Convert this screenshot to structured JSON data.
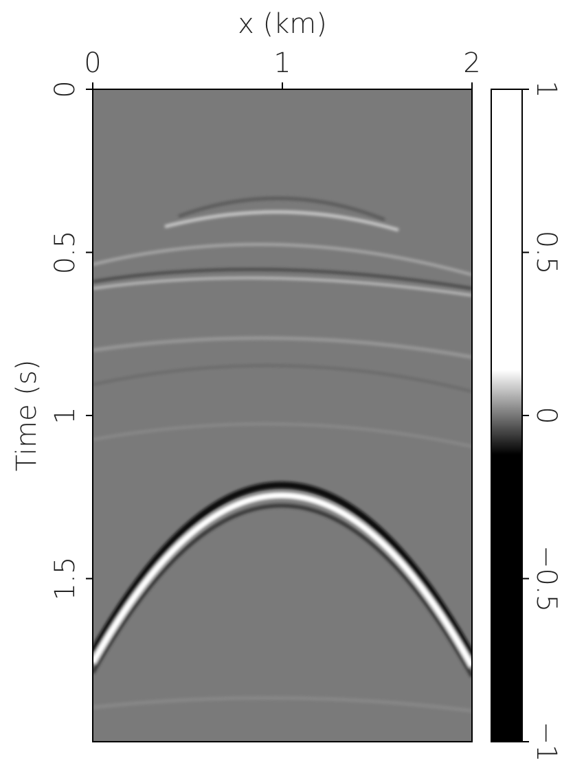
{
  "chart_data": {
    "type": "image",
    "xlabel": "x (km)",
    "ylabel": "Time (s)",
    "xlim": [
      0,
      2
    ],
    "xticks": [
      0,
      1,
      2
    ],
    "ylim": [
      0,
      2
    ],
    "yticks": [
      0,
      0.5,
      1,
      1.5
    ],
    "clim": [
      -1,
      1
    ],
    "cticks": [
      {
        "value": -1,
        "label": "−1"
      },
      {
        "value": -0.5,
        "label": "−0.5"
      },
      0,
      0.5,
      1
    ]
  }
}
